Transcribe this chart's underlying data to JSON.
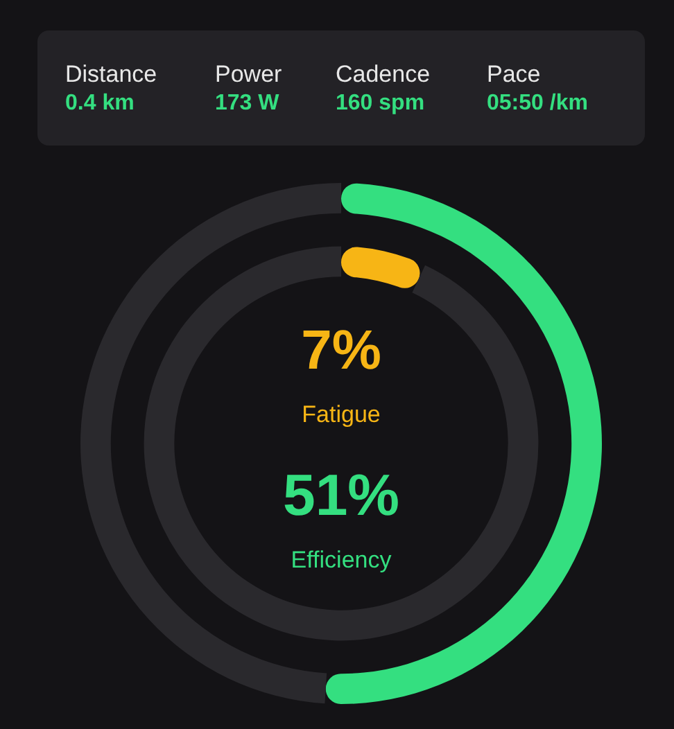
{
  "chart_data": [
    {
      "type": "other",
      "categories": [
        "Distance",
        "Power",
        "Cadence",
        "Pace"
      ],
      "value_labels": [
        "0.4 km",
        "173 W",
        "160 spm",
        "05:50 /km"
      ],
      "color": "#34df80"
    },
    {
      "type": "donut",
      "series": [
        {
          "name": "Efficiency",
          "values": [
            51,
            49
          ],
          "colors": [
            "#34df80",
            "#2a292d"
          ],
          "value_labels": [
            "51%",
            null
          ]
        },
        {
          "name": "Fatigue",
          "values": [
            7,
            93
          ],
          "colors": [
            "#f7b515",
            "#2a292d"
          ],
          "value_labels": [
            "7%",
            null
          ]
        }
      ]
    }
  ]
}
